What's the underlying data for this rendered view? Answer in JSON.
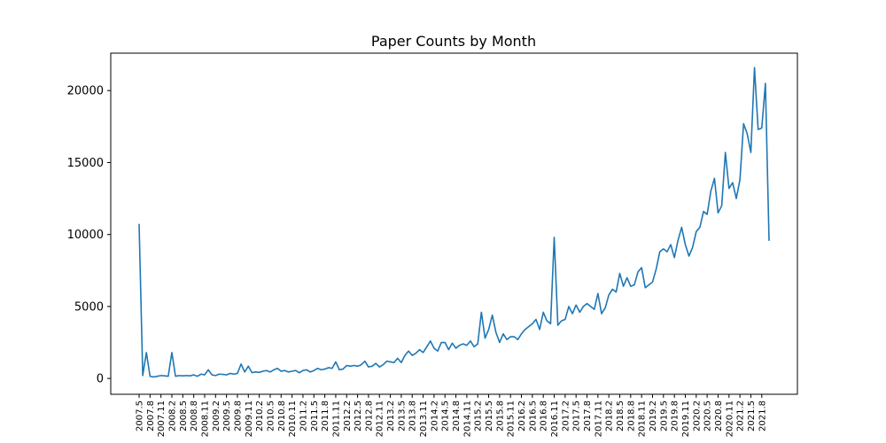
{
  "chart_data": {
    "type": "line",
    "title": "Paper Counts by Month",
    "xlabel": "",
    "ylabel": "",
    "ylim": [
      -1100,
      22600
    ],
    "yticks": [
      0,
      5000,
      10000,
      15000,
      20000
    ],
    "ytick_labels": [
      "0",
      "5000",
      "10000",
      "15000",
      "20000"
    ],
    "x": [
      "2007.5",
      "2007.6",
      "2007.7",
      "2007.8",
      "2007.9",
      "2007.10",
      "2007.11",
      "2007.12",
      "2008.1",
      "2008.2",
      "2008.3",
      "2008.4",
      "2008.5",
      "2008.6",
      "2008.7",
      "2008.8",
      "2008.9",
      "2008.10",
      "2008.11",
      "2008.12",
      "2009.1",
      "2009.2",
      "2009.3",
      "2009.4",
      "2009.5",
      "2009.6",
      "2009.7",
      "2009.8",
      "2009.9",
      "2009.10",
      "2009.11",
      "2009.12",
      "2010.1",
      "2010.2",
      "2010.3",
      "2010.4",
      "2010.5",
      "2010.6",
      "2010.7",
      "2010.8",
      "2010.9",
      "2010.10",
      "2010.11",
      "2010.12",
      "2011.1",
      "2011.2",
      "2011.3",
      "2011.4",
      "2011.5",
      "2011.6",
      "2011.7",
      "2011.8",
      "2011.9",
      "2011.10",
      "2011.11",
      "2011.12",
      "2012.1",
      "2012.2",
      "2012.3",
      "2012.4",
      "2012.5",
      "2012.6",
      "2012.7",
      "2012.8",
      "2012.9",
      "2012.10",
      "2012.11",
      "2012.12",
      "2013.1",
      "2013.2",
      "2013.3",
      "2013.4",
      "2013.5",
      "2013.6",
      "2013.7",
      "2013.8",
      "2013.9",
      "2013.10",
      "2013.11",
      "2013.12",
      "2014.1",
      "2014.2",
      "2014.3",
      "2014.4",
      "2014.5",
      "2014.6",
      "2014.7",
      "2014.8",
      "2014.9",
      "2014.10",
      "2014.11",
      "2014.12",
      "2015.1",
      "2015.2",
      "2015.3",
      "2015.4",
      "2015.5",
      "2015.6",
      "2015.7",
      "2015.8",
      "2015.9",
      "2015.10",
      "2015.11",
      "2015.12",
      "2016.1",
      "2016.2",
      "2016.3",
      "2016.4",
      "2016.5",
      "2016.6",
      "2016.7",
      "2016.8",
      "2016.9",
      "2016.10",
      "2016.11",
      "2016.12",
      "2017.1",
      "2017.2",
      "2017.3",
      "2017.4",
      "2017.5",
      "2017.6",
      "2017.7",
      "2017.8",
      "2017.9",
      "2017.10",
      "2017.11",
      "2017.12",
      "2018.1",
      "2018.2",
      "2018.3",
      "2018.4",
      "2018.5",
      "2018.6",
      "2018.7",
      "2018.8",
      "2018.9",
      "2018.10",
      "2018.11",
      "2018.12",
      "2019.1",
      "2019.2",
      "2019.3",
      "2019.4",
      "2019.5",
      "2019.6",
      "2019.7",
      "2019.8",
      "2019.9",
      "2019.10",
      "2019.11",
      "2019.12",
      "2020.1",
      "2020.2",
      "2020.3",
      "2020.4",
      "2020.5",
      "2020.6",
      "2020.7",
      "2020.8",
      "2020.9",
      "2020.10",
      "2020.11",
      "2020.12",
      "2021.1",
      "2021.2",
      "2021.3",
      "2021.4",
      "2021.5",
      "2021.6",
      "2021.7",
      "2021.8",
      "2021.9",
      "2021.10"
    ],
    "tick_labels": [
      "2007.5",
      "2007.8",
      "2007.11",
      "2008.2",
      "2008.5",
      "2008.8",
      "2008.11",
      "2009.2",
      "2009.5",
      "2009.8",
      "2009.11",
      "2010.2",
      "2010.5",
      "2010.8",
      "2010.11",
      "2011.2",
      "2011.5",
      "2011.8",
      "2011.11",
      "2012.2",
      "2012.5",
      "2012.8",
      "2012.11",
      "2013.2",
      "2013.5",
      "2013.8",
      "2013.11",
      "2014.2",
      "2014.5",
      "2014.8",
      "2014.11",
      "2015.2",
      "2015.5",
      "2015.8",
      "2015.11",
      "2016.2",
      "2016.5",
      "2016.8",
      "2016.11",
      "2017.2",
      "2017.5",
      "2017.8",
      "2017.11",
      "2018.2",
      "2018.5",
      "2018.8",
      "2018.11",
      "2019.2",
      "2019.5",
      "2019.8",
      "2019.11",
      "2020.2",
      "2020.5",
      "2020.8",
      "2020.11",
      "2021.2",
      "2021.5",
      "2021.8"
    ],
    "series": [
      {
        "name": "",
        "color": "#1f77b4",
        "values": [
          10700,
          200,
          1800,
          150,
          100,
          150,
          200,
          180,
          150,
          1800,
          150,
          200,
          180,
          200,
          180,
          250,
          150,
          300,
          250,
          600,
          250,
          200,
          300,
          280,
          250,
          350,
          300,
          350,
          1000,
          450,
          850,
          400,
          450,
          420,
          500,
          550,
          450,
          600,
          700,
          500,
          550,
          450,
          500,
          550,
          400,
          550,
          600,
          450,
          550,
          700,
          600,
          650,
          750,
          700,
          1150,
          600,
          650,
          900,
          850,
          900,
          850,
          950,
          1200,
          800,
          850,
          1050,
          800,
          950,
          1200,
          1150,
          1100,
          1400,
          1100,
          1600,
          1900,
          1600,
          1750,
          2000,
          1800,
          2200,
          2600,
          2100,
          1900,
          2500,
          2500,
          2000,
          2450,
          2100,
          2300,
          2400,
          2300,
          2600,
          2200,
          2400,
          4600,
          2800,
          3400,
          4400,
          3200,
          2500,
          3100,
          2700,
          2900,
          2900,
          2700,
          3100,
          3400,
          3600,
          3800,
          4100,
          3400,
          4600,
          4000,
          3800,
          9800,
          3700,
          4000,
          4100,
          5000,
          4500,
          5100,
          4600,
          5000,
          5200,
          5000,
          4800,
          5900,
          4500,
          4900,
          5800,
          6200,
          6000,
          7300,
          6400,
          7000,
          6400,
          6500,
          7400,
          7700,
          6300,
          6500,
          6700,
          7600,
          8800,
          9000,
          8800,
          9300,
          8400,
          9600,
          10500,
          9300,
          8500,
          9100,
          10200,
          10500,
          11600,
          11400,
          13000,
          13900,
          11500,
          12000,
          15700,
          13200,
          13600,
          12500,
          13800,
          17700,
          17000,
          15700,
          21600,
          17300,
          17400,
          20500,
          9600
        ]
      }
    ],
    "grid": false,
    "legend": "none"
  }
}
